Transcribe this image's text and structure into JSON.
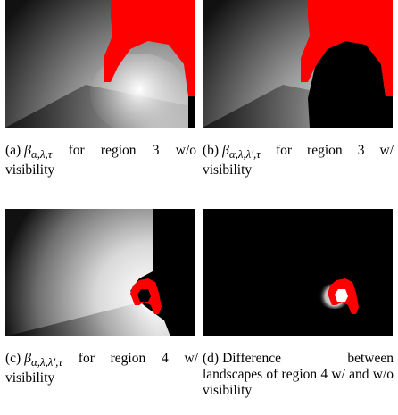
{
  "panels": [
    {
      "label": "(a)",
      "symbol": "β",
      "subscript": "α,λ,τ",
      "text": "for region 3 w/o visibility"
    },
    {
      "label": "(b)",
      "symbol": "β",
      "subscript": "α,λ,λ′,τ",
      "text": "for region 3 w/ visibility"
    },
    {
      "label": "(c)",
      "symbol": "β",
      "subscript": "α,λ,λ′,τ",
      "text": "for region 4 w/ visibility"
    },
    {
      "label": "(d)",
      "symbol": "",
      "subscript": "",
      "text": "Difference between landscapes of region 4 w/ and w/o visibility"
    }
  ],
  "colors": {
    "region": "#ff0000",
    "background": "#000000",
    "bright": "#ffffff"
  }
}
